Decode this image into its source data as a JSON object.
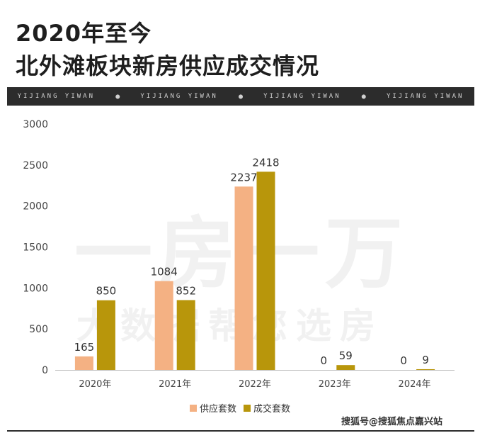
{
  "title_lines": [
    "2020年至今",
    "北外滩板块新房供应成交情况"
  ],
  "banner": {
    "items": [
      "YIJIANG YIWAN",
      "YIJIANG YIWAN",
      "YIJIANG YIWAN",
      "YIJIANG YIWAN"
    ],
    "separator": "●"
  },
  "watermark": {
    "line1": "一房一万",
    "line2": "大数据帮您选房"
  },
  "footer": "搜狐号@搜狐焦点嘉兴站",
  "colors": {
    "supply": "#F4B183",
    "deal": "#B8960B"
  },
  "chart_data": {
    "type": "bar",
    "categories": [
      "2020年",
      "2021年",
      "2022年",
      "2023年",
      "2024年"
    ],
    "series": [
      {
        "name": "供应套数",
        "values": [
          165,
          1084,
          2237,
          0,
          0
        ]
      },
      {
        "name": "成交套数",
        "values": [
          850,
          852,
          2418,
          59,
          9
        ]
      }
    ],
    "ylim": [
      0,
      3000
    ],
    "yticks": [
      0,
      500,
      1000,
      1500,
      2000,
      2500,
      3000
    ],
    "legend_position": "bottom",
    "grid": false
  }
}
